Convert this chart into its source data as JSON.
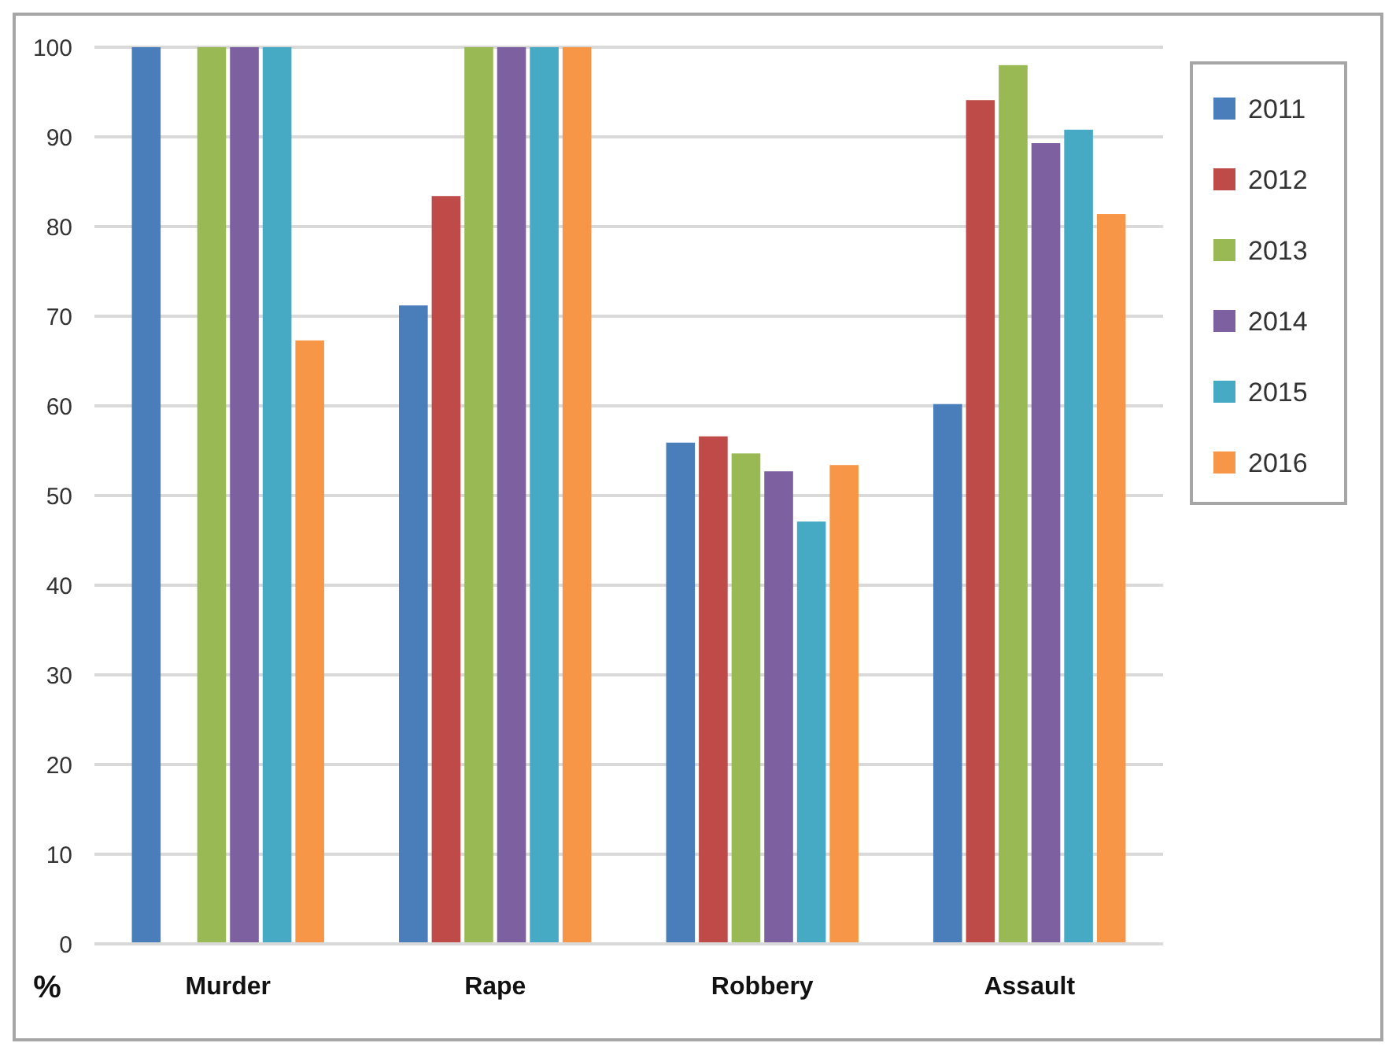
{
  "chart_data": {
    "type": "bar",
    "ylabel": "%",
    "categories": [
      "Murder",
      "Rape",
      "Robbery",
      "Assault"
    ],
    "series": [
      {
        "name": "2011",
        "color": "#4a7ebb",
        "values": [
          100,
          71.2,
          55.9,
          60.2
        ]
      },
      {
        "name": "2012",
        "color": "#be4b48",
        "values": [
          null,
          83.4,
          56.6,
          94.1
        ]
      },
      {
        "name": "2013",
        "color": "#98b954",
        "values": [
          100,
          100,
          54.7,
          98
        ]
      },
      {
        "name": "2014",
        "color": "#7d60a0",
        "values": [
          100,
          100,
          52.7,
          89.3
        ]
      },
      {
        "name": "2015",
        "color": "#46aac5",
        "values": [
          100,
          100,
          47.1,
          90.8
        ]
      },
      {
        "name": "2016",
        "color": "#f79646",
        "values": [
          67.3,
          100,
          53.4,
          81.4
        ]
      }
    ],
    "ylim": [
      0,
      100
    ],
    "yticks": [
      0,
      10,
      20,
      30,
      40,
      50,
      60,
      70,
      80,
      90,
      100
    ],
    "grid": "y",
    "legend": "right"
  }
}
